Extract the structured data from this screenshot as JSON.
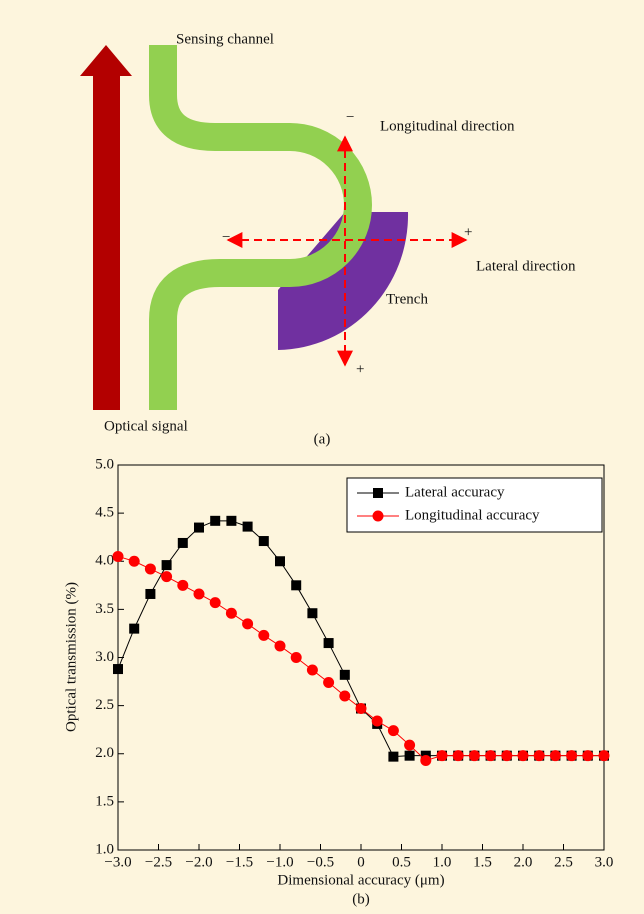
{
  "diagram": {
    "labels": {
      "sensing_channel": "Sensing channel",
      "longitudinal": "Longitudinal direction",
      "lateral": "Lateral direction",
      "trench": "Trench",
      "optical_signal": "Optical signal"
    },
    "signs": {
      "longitudinal_top": "−",
      "longitudinal_bottom": "+",
      "lateral_left": "−",
      "lateral_right": "+"
    },
    "caption": "(a)"
  },
  "chart_data": {
    "type": "line",
    "caption": "(b)",
    "x_label": "Dimensional accuracy (μm)",
    "y_label": "Optical transmission (%)",
    "x": [
      -3.0,
      -2.8,
      -2.6,
      -2.4,
      -2.2,
      -2.0,
      -1.8,
      -1.6,
      -1.4,
      -1.2,
      -1.0,
      -0.8,
      -0.6,
      -0.4,
      -0.2,
      0.0,
      0.2,
      0.4,
      0.6,
      0.8,
      1.0,
      1.2,
      1.4,
      1.6,
      1.8,
      2.0,
      2.2,
      2.4,
      2.6,
      2.8,
      3.0
    ],
    "series": [
      {
        "name": "Lateral accuracy",
        "color": "#000000",
        "marker": "square",
        "values": [
          2.88,
          3.3,
          3.66,
          3.96,
          4.19,
          4.35,
          4.42,
          4.42,
          4.36,
          4.21,
          4.0,
          3.75,
          3.46,
          3.15,
          2.82,
          2.47,
          2.31,
          1.97,
          1.98,
          1.98,
          1.98,
          1.98,
          1.98,
          1.98,
          1.98,
          1.98,
          1.98,
          1.98,
          1.98,
          1.98,
          1.98
        ]
      },
      {
        "name": "Longitudinal accuracy",
        "color": "#ff0000",
        "marker": "circle",
        "values": [
          4.05,
          4.0,
          3.92,
          3.84,
          3.75,
          3.66,
          3.57,
          3.46,
          3.35,
          3.23,
          3.12,
          3.0,
          2.87,
          2.74,
          2.6,
          2.47,
          2.34,
          2.24,
          2.09,
          1.93,
          1.98,
          1.98,
          1.98,
          1.98,
          1.98,
          1.98,
          1.98,
          1.98,
          1.98,
          1.98,
          1.98
        ]
      }
    ],
    "xlim": [
      -3.0,
      3.0
    ],
    "xticks": [
      {
        "value": -3,
        "label": "−3.0"
      },
      {
        "value": -2.5,
        "label": "−2.5"
      },
      {
        "value": -2,
        "label": "−2.0"
      },
      {
        "value": -1.5,
        "label": "−1.5"
      },
      {
        "value": -1,
        "label": "−1.0"
      },
      {
        "value": -0.5,
        "label": "−0.5"
      },
      0,
      0.5,
      {
        "value": 1,
        "label": "1.0"
      },
      1.5,
      {
        "value": 2,
        "label": "2.0"
      },
      2.5,
      {
        "value": 3,
        "label": "3.0"
      }
    ],
    "ylim": [
      1.0,
      5.0
    ],
    "yticks": [
      {
        "value": 1,
        "label": "1.0"
      },
      1.5,
      {
        "value": 2,
        "label": "2.0"
      },
      2.5,
      {
        "value": 3,
        "label": "3.0"
      },
      3.5,
      {
        "value": 4,
        "label": "4.0"
      },
      4.5,
      {
        "value": 5,
        "label": "5.0"
      }
    ],
    "legend": "upper right",
    "grid": false
  }
}
